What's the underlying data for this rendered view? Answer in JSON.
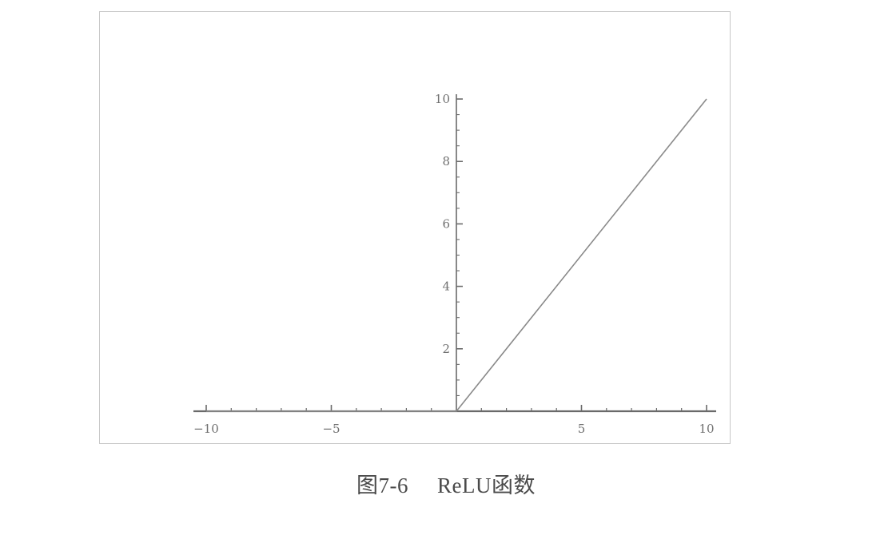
{
  "figure": {
    "label": "图7-6",
    "title": "ReLU函数"
  },
  "colors": {
    "axis": "#6a6a6a",
    "line": "#8a8a8a",
    "frame": "#c8c8c8",
    "text": "#6f6f6f"
  },
  "chart_data": {
    "type": "line",
    "title": "",
    "xlabel": "",
    "ylabel": "",
    "xlim": [
      -10,
      10
    ],
    "ylim": [
      0,
      10
    ],
    "x_ticks": [
      -10,
      -5,
      5,
      10
    ],
    "x_tick_labels": [
      "−10",
      "−5",
      "5",
      "10"
    ],
    "y_ticks": [
      2,
      4,
      6,
      8,
      10
    ],
    "y_tick_labels": [
      "2",
      "4",
      "6",
      "8",
      "10"
    ],
    "grid": false,
    "series": [
      {
        "x": [
          -10,
          0,
          10
        ],
        "y": [
          0,
          0,
          10
        ]
      }
    ]
  }
}
